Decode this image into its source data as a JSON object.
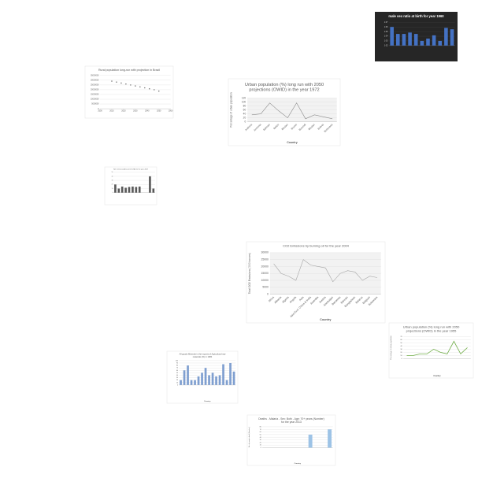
{
  "chart_data": [
    {
      "type": "bar",
      "title": "male sex ratio at birth for year 1960",
      "background": "#262626",
      "categories": [
        null,
        null,
        null,
        null,
        null,
        null,
        null,
        null,
        null,
        null,
        null
      ],
      "series": [
        {
          "name": "sex ratio",
          "color": "#4472c4",
          "values": [
            1.06,
            1.045,
            1.045,
            1.048,
            1.045,
            1.03,
            1.035,
            1.042,
            1.03,
            1.058,
            1.055
          ]
        }
      ],
      "ylim": [
        1.02,
        1.07
      ],
      "yticks": [
        1.02,
        1.03,
        1.04,
        1.05,
        1.06,
        1.07
      ],
      "grid": true
    },
    {
      "type": "scatter",
      "title": "Rural population long-run with projection in Brazil",
      "x": [
        2010,
        2014,
        2018,
        2022,
        2026,
        2030,
        2034,
        2038,
        2042,
        2046,
        2050
      ],
      "series": [
        {
          "name": "Rural population",
          "color": "#7f7f7f",
          "values": [
            29000000,
            28000000,
            27000000,
            26000000,
            25000000,
            24000000,
            23000000,
            22000000,
            21000000,
            20000000,
            18500000
          ]
        }
      ],
      "xlim": [
        2000,
        2060
      ],
      "xticks": [
        2000,
        2010,
        2020,
        2030,
        2040,
        2050,
        2060
      ],
      "ylim": [
        0,
        35000000
      ],
      "yticks": [
        0,
        5000000,
        10000000,
        15000000,
        20000000,
        25000000,
        30000000,
        35000000
      ],
      "grid": true
    },
    {
      "type": "line",
      "title": "Urban population (%) long run with 2050 projections (OWID) in the year 1972",
      "x_label": "Country",
      "y_label": "Percentage of urban population",
      "categories": [
        "Andorra",
        "Armenia",
        "Bahrain",
        "Belize",
        "Bhutan",
        "Brunei",
        "Burundi",
        "Bhutan",
        "Bolivia",
        "Botswana"
      ],
      "series": [
        {
          "name": "Urban population",
          "color": "#8c8c8c",
          "values": [
            35,
            40,
            95,
            55,
            20,
            95,
            15,
            35,
            25,
            15
          ]
        }
      ],
      "ylim": [
        0,
        120
      ],
      "yticks": [
        0,
        20,
        40,
        60,
        80,
        100,
        120
      ],
      "grid": true
    },
    {
      "type": "bar",
      "title": "Net Overseas Aid (current US$) for the year 2009",
      "categories": [
        null,
        null,
        null,
        null,
        null,
        null,
        null,
        null,
        null,
        null,
        null,
        null
      ],
      "series": [
        {
          "name": "Aid",
          "color": "#595959",
          "values": [
            20,
            10,
            15,
            12,
            14,
            15,
            14,
            15,
            0,
            0,
            40,
            10
          ]
        }
      ],
      "ylim": [
        0,
        50
      ],
      "yticks": [
        0,
        10,
        20,
        30,
        40,
        50
      ],
      "grid": true
    },
    {
      "type": "line",
      "title": "CO2 Emissions by burning oil for the year 2004",
      "x_label": "Country",
      "y_label": "Total CO2 Emissions ('000 tonnes)",
      "categories": [
        "Africa",
        "Albania",
        "Algeria",
        "Angola",
        "Asia",
        "Asia Excl. China & India",
        "Australia",
        "Austria",
        "Azerbaijan",
        "Bahamas",
        "Bahrain",
        "Bangladesh",
        "Belarus",
        "Belgium",
        "Botswana"
      ],
      "series": [
        {
          "name": "CO2",
          "color": "#a6a6a6",
          "values": [
            22000,
            15000,
            13000,
            10000,
            25000,
            21000,
            20000,
            19000,
            9000,
            15000,
            17000,
            16000,
            10000,
            13000,
            12000
          ]
        }
      ],
      "ylim": [
        0,
        30000
      ],
      "yticks": [
        0,
        5000,
        10000,
        15000,
        20000,
        25000,
        30000
      ],
      "grid": true
    },
    {
      "type": "line",
      "title": "Urban population (%) long run with 2050 projections (OWID) in the year 1955",
      "x_label": "Country",
      "y_label": "Percentage of urban population",
      "categories": [
        null,
        null,
        null,
        null,
        null,
        null,
        null,
        null,
        null,
        null
      ],
      "series": [
        {
          "name": "Urban population",
          "color": "#70ad47",
          "values": [
            10,
            10,
            15,
            15,
            30,
            20,
            15,
            55,
            15,
            35
          ]
        }
      ],
      "ylim": [
        0,
        70
      ],
      "yticks": [
        0,
        10,
        20,
        30,
        40,
        50,
        60,
        70
      ],
      "grid": true
    },
    {
      "type": "bar",
      "title": "All goods Minerals in the imports of Agricultural raw materials (%) in 1984",
      "x_label": "Country",
      "categories": [
        null,
        null,
        null,
        null,
        null,
        null,
        null,
        null,
        null,
        null,
        null,
        null,
        null,
        null,
        null,
        null
      ],
      "series": [
        {
          "name": "Minerals",
          "color": "#7f9fd0",
          "values": [
            20,
            60,
            80,
            20,
            20,
            35,
            50,
            70,
            40,
            50,
            35,
            40,
            85,
            20,
            90,
            55
          ]
        }
      ],
      "ylim": [
        0,
        100
      ],
      "yticks": [
        0,
        10,
        20,
        30,
        40,
        50,
        60,
        70,
        80,
        90,
        100
      ],
      "grid": true
    },
    {
      "type": "bar",
      "title": "Deaths - Malaria - Sex: Both - Age: 70+ years (Number) for the year 2013",
      "x_label": "Country",
      "y_label": "No. of people dead (Number)",
      "categories": [
        null,
        null,
        null,
        null,
        null,
        null,
        null,
        null,
        null,
        null,
        null
      ],
      "series": [
        {
          "name": "Deaths",
          "color": "#9dc3e6",
          "values": [
            0,
            0,
            0,
            0,
            0,
            0,
            0,
            50,
            0,
            0,
            70
          ]
        }
      ],
      "ylim": [
        0,
        80
      ],
      "yticks": [
        0,
        10,
        20,
        30,
        40,
        50,
        60,
        70,
        80
      ],
      "grid": true
    }
  ]
}
